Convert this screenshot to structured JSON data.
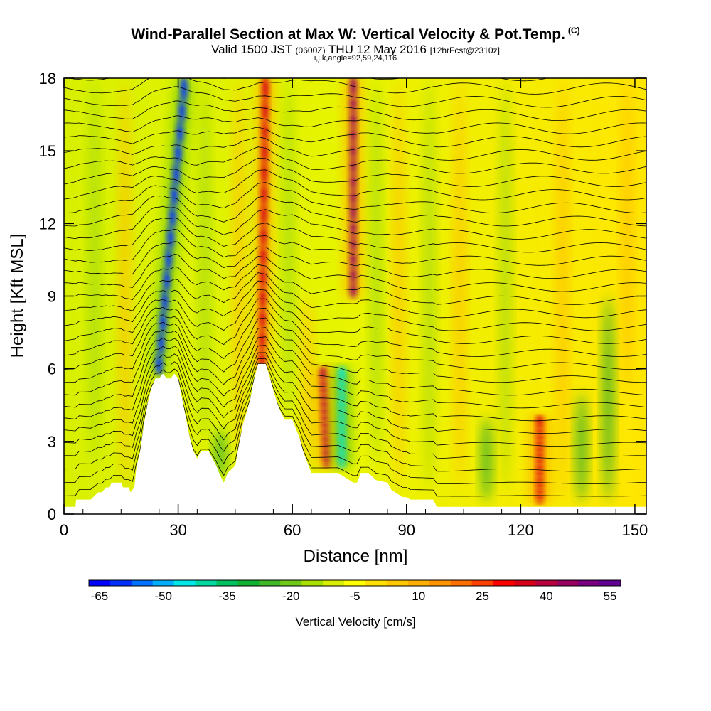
{
  "header": {
    "title": "Wind-Parallel Section at Max W: Vertical Velocity & Pot.Temp.",
    "title_tag": "(C)",
    "valid_prefix": "Valid 1500 JST",
    "valid_utc": "(0600Z)",
    "valid_date": "THU 12 May 2016",
    "forecast": "[12hrFcst@2310z]",
    "params": "i,j,k,angle=92,59,24,116"
  },
  "chart_data": {
    "type": "heatmap",
    "title": "Wind-Parallel Section at Max W: Vertical Velocity & Pot.Temp.",
    "xlabel": "Distance [nm]",
    "ylabel": "Height [Kft MSL]",
    "xlim": [
      0,
      153
    ],
    "ylim": [
      0,
      18
    ],
    "x_ticks": [
      0,
      30,
      60,
      90,
      120,
      150
    ],
    "y_ticks": [
      0,
      3,
      6,
      9,
      12,
      15,
      18
    ],
    "terrain_profile": [
      [
        0,
        0.3
      ],
      [
        3,
        0.3
      ],
      [
        3.2,
        0.6
      ],
      [
        7,
        0.6
      ],
      [
        9,
        0.9
      ],
      [
        10,
        0.9
      ],
      [
        11,
        1.1
      ],
      [
        12,
        1.1
      ],
      [
        12.5,
        1.3
      ],
      [
        15,
        1.3
      ],
      [
        15.5,
        1.1
      ],
      [
        17,
        1.1
      ],
      [
        17.5,
        0.9
      ],
      [
        18.5,
        1.1
      ],
      [
        19,
        1.9
      ],
      [
        20,
        2.6
      ],
      [
        21,
        3.7
      ],
      [
        22,
        4.6
      ],
      [
        23,
        5.2
      ],
      [
        24,
        5.6
      ],
      [
        25,
        5.6
      ],
      [
        26,
        5.8
      ],
      [
        27,
        5.6
      ],
      [
        28,
        5.6
      ],
      [
        29,
        5.8
      ],
      [
        30,
        5.6
      ],
      [
        31,
        4.8
      ],
      [
        32,
        4.0
      ],
      [
        33,
        3.2
      ],
      [
        34,
        2.6
      ],
      [
        35,
        2.3
      ],
      [
        36,
        2.6
      ],
      [
        38,
        2.6
      ],
      [
        39,
        2.3
      ],
      [
        40,
        2.0
      ],
      [
        41,
        1.6
      ],
      [
        42,
        1.3
      ],
      [
        43,
        1.7
      ],
      [
        45,
        2.0
      ],
      [
        46,
        2.9
      ],
      [
        47,
        3.7
      ],
      [
        48,
        4.2
      ],
      [
        49,
        4.8
      ],
      [
        50,
        5.6
      ],
      [
        51,
        6.2
      ],
      [
        53,
        6.2
      ],
      [
        54,
        5.7
      ],
      [
        55,
        5.1
      ],
      [
        56,
        4.6
      ],
      [
        57,
        4.2
      ],
      [
        58,
        3.9
      ],
      [
        60,
        3.9
      ],
      [
        61,
        3.5
      ],
      [
        62,
        3.1
      ],
      [
        63,
        2.5
      ],
      [
        64,
        2.1
      ],
      [
        65,
        1.7
      ],
      [
        67,
        1.7
      ],
      [
        69,
        1.7
      ],
      [
        70,
        1.7
      ],
      [
        72,
        1.7
      ],
      [
        75,
        1.4
      ],
      [
        76,
        1.3
      ],
      [
        77,
        1.3
      ],
      [
        78,
        1.7
      ],
      [
        80,
        1.7
      ],
      [
        82,
        1.4
      ],
      [
        85,
        1.3
      ],
      [
        86,
        1.0
      ],
      [
        89,
        0.7
      ],
      [
        90,
        0.7
      ],
      [
        91,
        0.6
      ],
      [
        97,
        0.6
      ],
      [
        98,
        0.3
      ],
      [
        153,
        0.3
      ]
    ],
    "color_scale": {
      "label": "Vertical Velocity [cm/s]",
      "tick_labels": [
        "-65",
        "-50",
        "-35",
        "-20",
        "-5",
        "10",
        "25",
        "40",
        "55"
      ],
      "colors": [
        "#0000ff",
        "#0030ff",
        "#0070ff",
        "#00b0ff",
        "#00e8e8",
        "#00d8a0",
        "#00c060",
        "#10b030",
        "#40b828",
        "#70c818",
        "#a8e000",
        "#d8f000",
        "#ffff00",
        "#ffe000",
        "#ffc800",
        "#ffb000",
        "#ff9600",
        "#ff7000",
        "#ff4000",
        "#ff0000",
        "#d80018",
        "#b80040",
        "#980060",
        "#780080",
        "#600090"
      ]
    },
    "updraft_bands": [
      {
        "x_bottom": 25,
        "x_top": 32,
        "y_from": 5.8,
        "y_to": 18,
        "sign": "down",
        "w": -60
      },
      {
        "x_bottom": 52,
        "x_top": 53,
        "y_from": 6,
        "y_to": 18,
        "sign": "up",
        "w": 35
      },
      {
        "x_bottom": 69,
        "x_top": 68,
        "y_from": 2,
        "y_to": 6,
        "sign": "up",
        "w": 40
      },
      {
        "x_bottom": 73,
        "x_top": 73,
        "y_from": 2,
        "y_to": 6,
        "sign": "down",
        "w": -45
      },
      {
        "x_bottom": 76,
        "x_top": 76,
        "y_from": 9,
        "y_to": 18,
        "sign": "up",
        "w": 45
      },
      {
        "x_bottom": 125,
        "x_top": 125,
        "y_from": 0.5,
        "y_to": 4,
        "sign": "up",
        "w": 35
      }
    ]
  }
}
